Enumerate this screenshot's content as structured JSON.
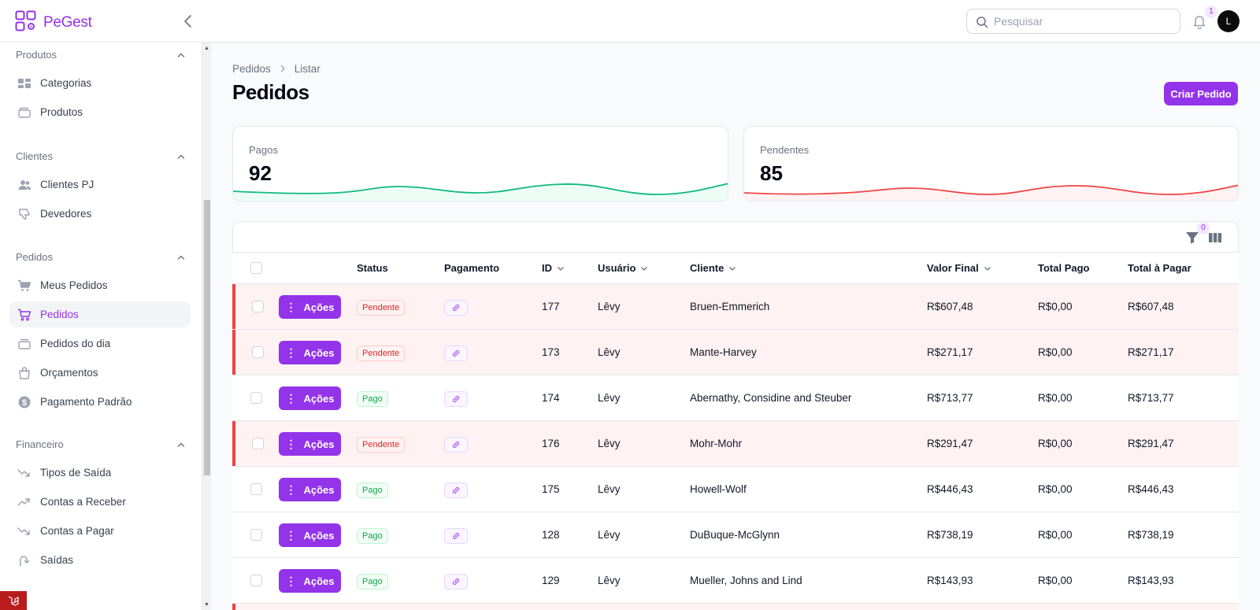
{
  "app": {
    "name_pe": "Pe",
    "name_gest": "Gest"
  },
  "search": {
    "placeholder": "Pesquisar"
  },
  "notifications": {
    "count": "1"
  },
  "user": {
    "initial": "L"
  },
  "sidebar": {
    "groups": [
      {
        "label": "Produtos",
        "items": [
          {
            "label": "Categorias"
          },
          {
            "label": "Produtos"
          }
        ]
      },
      {
        "label": "Clientes",
        "items": [
          {
            "label": "Clientes PJ"
          },
          {
            "label": "Devedores"
          }
        ]
      },
      {
        "label": "Pedidos",
        "items": [
          {
            "label": "Meus Pedidos"
          },
          {
            "label": "Pedidos"
          },
          {
            "label": "Pedidos do dia"
          },
          {
            "label": "Orçamentos"
          },
          {
            "label": "Pagamento Padrão"
          }
        ]
      },
      {
        "label": "Financeiro",
        "items": [
          {
            "label": "Tipos de Saída"
          },
          {
            "label": "Contas a Receber"
          },
          {
            "label": "Contas a Pagar"
          },
          {
            "label": "Saídas"
          }
        ]
      }
    ],
    "active_item": "Pedidos"
  },
  "breadcrumb": {
    "parent": "Pedidos",
    "current": "Listar"
  },
  "page": {
    "title": "Pedidos",
    "create_button": "Criar Pedido"
  },
  "stats": [
    {
      "label": "Pagos",
      "value": "92",
      "color": "#10b981"
    },
    {
      "label": "Pendentes",
      "value": "85",
      "color": "#ef4444"
    }
  ],
  "table": {
    "filter_count": "0",
    "action_label": "Ações",
    "columns": {
      "status": "Status",
      "pagamento": "Pagamento",
      "id": "ID",
      "usuario": "Usuário",
      "cliente": "Cliente",
      "valor_final": "Valor Final",
      "total_pago": "Total Pago",
      "total_pagar": "Total à Pagar"
    },
    "rows": [
      {
        "status": "Pendente",
        "id": "177",
        "usuario": "Lêvy",
        "cliente": "Bruen-Emmerich",
        "valor_final": "R$607,48",
        "total_pago": "R$0,00",
        "total_pagar": "R$607,48"
      },
      {
        "status": "Pendente",
        "id": "173",
        "usuario": "Lêvy",
        "cliente": "Mante-Harvey",
        "valor_final": "R$271,17",
        "total_pago": "R$0,00",
        "total_pagar": "R$271,17"
      },
      {
        "status": "Pago",
        "id": "174",
        "usuario": "Lêvy",
        "cliente": "Abernathy, Considine and Steuber",
        "valor_final": "R$713,77",
        "total_pago": "R$0,00",
        "total_pagar": "R$713,77"
      },
      {
        "status": "Pendente",
        "id": "176",
        "usuario": "Lêvy",
        "cliente": "Mohr-Mohr",
        "valor_final": "R$291,47",
        "total_pago": "R$0,00",
        "total_pagar": "R$291,47"
      },
      {
        "status": "Pago",
        "id": "175",
        "usuario": "Lêvy",
        "cliente": "Howell-Wolf",
        "valor_final": "R$446,43",
        "total_pago": "R$0,00",
        "total_pagar": "R$446,43"
      },
      {
        "status": "Pago",
        "id": "128",
        "usuario": "Lêvy",
        "cliente": "DuBuque-McGlynn",
        "valor_final": "R$738,19",
        "total_pago": "R$0,00",
        "total_pagar": "R$738,19"
      },
      {
        "status": "Pago",
        "id": "129",
        "usuario": "Lêvy",
        "cliente": "Mueller, Johns and Lind",
        "valor_final": "R$143,93",
        "total_pago": "R$0,00",
        "total_pagar": "R$143,93"
      }
    ]
  },
  "colors": {
    "accent": "#9333ea",
    "danger": "#ef4444",
    "success": "#10b981"
  }
}
